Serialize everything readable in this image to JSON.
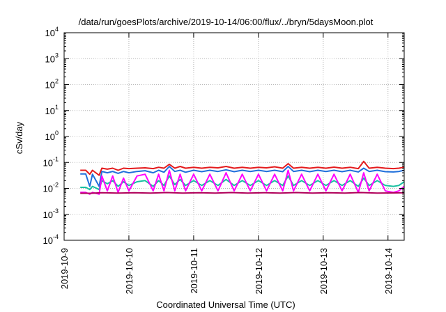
{
  "chart_data": {
    "type": "line",
    "title": "/data/run/goesPlots/archive/2019-10-14/06:00/flux/../bryn/5daysMoon.plot",
    "xlabel": "Coordinated Universal Time (UTC)",
    "ylabel": "cSv/day",
    "yscale": "log",
    "ylim": [
      0.0001,
      10000
    ],
    "xlim": [
      "2019-10-09T00:00",
      "2019-10-14T06:00"
    ],
    "x_ticks": [
      {
        "label": "2019-10-9",
        "date": "2019-10-09"
      },
      {
        "label": "2019-10-10",
        "date": "2019-10-10"
      },
      {
        "label": "2019-10-11",
        "date": "2019-10-11"
      },
      {
        "label": "2019-10-12",
        "date": "2019-10-12"
      },
      {
        "label": "2019-10-13",
        "date": "2019-10-13"
      },
      {
        "label": "2019-10-14",
        "date": "2019-10-14"
      }
    ],
    "y_ticks": [
      {
        "base": "10",
        "exp": "-4",
        "value": 0.0001
      },
      {
        "base": "10",
        "exp": "-3",
        "value": 0.001
      },
      {
        "base": "10",
        "exp": "-2",
        "value": 0.01
      },
      {
        "base": "10",
        "exp": "-1",
        "value": 0.1
      },
      {
        "base": "10",
        "exp": "0",
        "value": 1
      },
      {
        "base": "10",
        "exp": "1",
        "value": 10
      },
      {
        "base": "10",
        "exp": "2",
        "value": 100
      },
      {
        "base": "10",
        "exp": "3",
        "value": 1000
      },
      {
        "base": "10",
        "exp": "4",
        "value": 10000
      }
    ],
    "grid": true,
    "series": [
      {
        "color": "#e41a1c",
        "values": [
          [
            "2019-10-09T06:00",
            0.05
          ],
          [
            "2019-10-09T08:00",
            0.05
          ],
          [
            "2019-10-09T09:30",
            0.035
          ],
          [
            "2019-10-09T10:30",
            0.05
          ],
          [
            "2019-10-09T13:00",
            0.032
          ],
          [
            "2019-10-09T14:00",
            0.06
          ],
          [
            "2019-10-09T16:00",
            0.055
          ],
          [
            "2019-10-09T18:00",
            0.06
          ],
          [
            "2019-10-09T20:00",
            0.05
          ],
          [
            "2019-10-09T22:00",
            0.06
          ],
          [
            "2019-10-10T00:00",
            0.058
          ],
          [
            "2019-10-10T03:00",
            0.06
          ],
          [
            "2019-10-10T06:00",
            0.062
          ],
          [
            "2019-10-10T09:00",
            0.058
          ],
          [
            "2019-10-10T11:00",
            0.065
          ],
          [
            "2019-10-10T13:00",
            0.06
          ],
          [
            "2019-10-10T15:00",
            0.085
          ],
          [
            "2019-10-10T17:00",
            0.06
          ],
          [
            "2019-10-10T19:00",
            0.07
          ],
          [
            "2019-10-10T21:00",
            0.06
          ],
          [
            "2019-10-11T00:00",
            0.065
          ],
          [
            "2019-10-11T03:00",
            0.06
          ],
          [
            "2019-10-11T06:00",
            0.065
          ],
          [
            "2019-10-11T09:00",
            0.062
          ],
          [
            "2019-10-11T12:00",
            0.07
          ],
          [
            "2019-10-11T15:00",
            0.06
          ],
          [
            "2019-10-11T18:00",
            0.065
          ],
          [
            "2019-10-11T21:00",
            0.06
          ],
          [
            "2019-10-12T00:00",
            0.065
          ],
          [
            "2019-10-12T03:00",
            0.062
          ],
          [
            "2019-10-12T06:00",
            0.068
          ],
          [
            "2019-10-12T09:00",
            0.06
          ],
          [
            "2019-10-12T11:00",
            0.09
          ],
          [
            "2019-10-12T13:00",
            0.06
          ],
          [
            "2019-10-12T16:00",
            0.065
          ],
          [
            "2019-10-12T19:00",
            0.06
          ],
          [
            "2019-10-12T22:00",
            0.065
          ],
          [
            "2019-10-13T01:00",
            0.06
          ],
          [
            "2019-10-13T04:00",
            0.066
          ],
          [
            "2019-10-13T07:00",
            0.06
          ],
          [
            "2019-10-13T10:00",
            0.065
          ],
          [
            "2019-10-13T13:00",
            0.058
          ],
          [
            "2019-10-13T15:00",
            0.11
          ],
          [
            "2019-10-13T17:00",
            0.06
          ],
          [
            "2019-10-13T20:00",
            0.065
          ],
          [
            "2019-10-13T23:00",
            0.06
          ],
          [
            "2019-10-14T02:00",
            0.058
          ],
          [
            "2019-10-14T04:00",
            0.06
          ],
          [
            "2019-10-14T06:00",
            0.065
          ]
        ]
      },
      {
        "color": "#1f6fdb",
        "values": [
          [
            "2019-10-09T06:00",
            0.036
          ],
          [
            "2019-10-09T08:00",
            0.036
          ],
          [
            "2019-10-09T09:30",
            0.012
          ],
          [
            "2019-10-09T10:30",
            0.035
          ],
          [
            "2019-10-09T13:00",
            0.012
          ],
          [
            "2019-10-09T14:00",
            0.045
          ],
          [
            "2019-10-09T16:00",
            0.04
          ],
          [
            "2019-10-09T18:00",
            0.045
          ],
          [
            "2019-10-09T20:00",
            0.038
          ],
          [
            "2019-10-09T22:00",
            0.045
          ],
          [
            "2019-10-10T00:00",
            0.04
          ],
          [
            "2019-10-10T03:00",
            0.045
          ],
          [
            "2019-10-10T06:00",
            0.048
          ],
          [
            "2019-10-10T09:00",
            0.04
          ],
          [
            "2019-10-10T11:00",
            0.05
          ],
          [
            "2019-10-10T13:00",
            0.042
          ],
          [
            "2019-10-10T15:00",
            0.07
          ],
          [
            "2019-10-10T17:00",
            0.045
          ],
          [
            "2019-10-10T19:00",
            0.05
          ],
          [
            "2019-10-10T21:00",
            0.042
          ],
          [
            "2019-10-11T00:00",
            0.05
          ],
          [
            "2019-10-11T03:00",
            0.044
          ],
          [
            "2019-10-11T06:00",
            0.05
          ],
          [
            "2019-10-11T09:00",
            0.045
          ],
          [
            "2019-10-11T12:00",
            0.052
          ],
          [
            "2019-10-11T15:00",
            0.044
          ],
          [
            "2019-10-11T18:00",
            0.05
          ],
          [
            "2019-10-11T21:00",
            0.045
          ],
          [
            "2019-10-12T00:00",
            0.05
          ],
          [
            "2019-10-12T03:00",
            0.045
          ],
          [
            "2019-10-12T06:00",
            0.05
          ],
          [
            "2019-10-12T09:00",
            0.044
          ],
          [
            "2019-10-12T11:00",
            0.07
          ],
          [
            "2019-10-12T13:00",
            0.045
          ],
          [
            "2019-10-12T16:00",
            0.05
          ],
          [
            "2019-10-12T19:00",
            0.044
          ],
          [
            "2019-10-12T22:00",
            0.05
          ],
          [
            "2019-10-13T01:00",
            0.045
          ],
          [
            "2019-10-13T04:00",
            0.05
          ],
          [
            "2019-10-13T07:00",
            0.044
          ],
          [
            "2019-10-13T10:00",
            0.05
          ],
          [
            "2019-10-13T13:00",
            0.043
          ],
          [
            "2019-10-13T15:00",
            0.06
          ],
          [
            "2019-10-13T17:00",
            0.045
          ],
          [
            "2019-10-13T20:00",
            0.05
          ],
          [
            "2019-10-13T23:00",
            0.044
          ],
          [
            "2019-10-14T02:00",
            0.043
          ],
          [
            "2019-10-14T04:00",
            0.045
          ],
          [
            "2019-10-14T06:00",
            0.05
          ]
        ]
      },
      {
        "color": "#17c0a0",
        "values": [
          [
            "2019-10-09T06:00",
            0.011
          ],
          [
            "2019-10-09T08:00",
            0.011
          ],
          [
            "2019-10-09T09:30",
            0.009
          ],
          [
            "2019-10-09T10:30",
            0.012
          ],
          [
            "2019-10-09T13:00",
            0.009
          ],
          [
            "2019-10-09T14:00",
            0.02
          ],
          [
            "2019-10-09T16:00",
            0.015
          ],
          [
            "2019-10-09T18:00",
            0.02
          ],
          [
            "2019-10-09T20:00",
            0.012
          ],
          [
            "2019-10-09T22:00",
            0.018
          ],
          [
            "2019-10-10T00:00",
            0.013
          ],
          [
            "2019-10-10T03:00",
            0.018
          ],
          [
            "2019-10-10T06:00",
            0.02
          ],
          [
            "2019-10-10T09:00",
            0.012
          ],
          [
            "2019-10-10T11:00",
            0.02
          ],
          [
            "2019-10-10T13:00",
            0.013
          ],
          [
            "2019-10-10T15:00",
            0.03
          ],
          [
            "2019-10-10T17:00",
            0.014
          ],
          [
            "2019-10-10T19:00",
            0.022
          ],
          [
            "2019-10-10T21:00",
            0.013
          ],
          [
            "2019-10-11T00:00",
            0.02
          ],
          [
            "2019-10-11T03:00",
            0.013
          ],
          [
            "2019-10-11T06:00",
            0.02
          ],
          [
            "2019-10-11T09:00",
            0.013
          ],
          [
            "2019-10-11T12:00",
            0.022
          ],
          [
            "2019-10-11T15:00",
            0.013
          ],
          [
            "2019-10-11T18:00",
            0.02
          ],
          [
            "2019-10-11T21:00",
            0.013
          ],
          [
            "2019-10-12T00:00",
            0.02
          ],
          [
            "2019-10-12T03:00",
            0.013
          ],
          [
            "2019-10-12T06:00",
            0.02
          ],
          [
            "2019-10-12T09:00",
            0.013
          ],
          [
            "2019-10-12T11:00",
            0.03
          ],
          [
            "2019-10-12T13:00",
            0.013
          ],
          [
            "2019-10-12T16:00",
            0.02
          ],
          [
            "2019-10-12T19:00",
            0.013
          ],
          [
            "2019-10-12T22:00",
            0.02
          ],
          [
            "2019-10-13T01:00",
            0.013
          ],
          [
            "2019-10-13T04:00",
            0.02
          ],
          [
            "2019-10-13T07:00",
            0.013
          ],
          [
            "2019-10-13T10:00",
            0.02
          ],
          [
            "2019-10-13T13:00",
            0.012
          ],
          [
            "2019-10-13T15:00",
            0.025
          ],
          [
            "2019-10-13T17:00",
            0.013
          ],
          [
            "2019-10-13T20:00",
            0.02
          ],
          [
            "2019-10-13T23:00",
            0.013
          ],
          [
            "2019-10-14T02:00",
            0.012
          ],
          [
            "2019-10-14T04:00",
            0.013
          ],
          [
            "2019-10-14T06:00",
            0.018
          ]
        ]
      },
      {
        "color": "#ff00ff",
        "values": [
          [
            "2019-10-09T06:00",
            0.007
          ],
          [
            "2019-10-09T08:00",
            0.007
          ],
          [
            "2019-10-09T09:30",
            0.006
          ],
          [
            "2019-10-09T10:30",
            0.007
          ],
          [
            "2019-10-09T13:00",
            0.006
          ],
          [
            "2019-10-09T14:00",
            0.03
          ],
          [
            "2019-10-09T16:00",
            0.008
          ],
          [
            "2019-10-09T18:00",
            0.03
          ],
          [
            "2019-10-09T20:00",
            0.007
          ],
          [
            "2019-10-09T22:00",
            0.025
          ],
          [
            "2019-10-10T00:00",
            0.008
          ],
          [
            "2019-10-10T03:00",
            0.03
          ],
          [
            "2019-10-10T06:00",
            0.035
          ],
          [
            "2019-10-10T09:00",
            0.008
          ],
          [
            "2019-10-10T11:00",
            0.035
          ],
          [
            "2019-10-10T13:00",
            0.008
          ],
          [
            "2019-10-10T15:00",
            0.05
          ],
          [
            "2019-10-10T17:00",
            0.008
          ],
          [
            "2019-10-10T19:00",
            0.035
          ],
          [
            "2019-10-10T21:00",
            0.008
          ],
          [
            "2019-10-11T00:00",
            0.035
          ],
          [
            "2019-10-11T03:00",
            0.008
          ],
          [
            "2019-10-11T06:00",
            0.035
          ],
          [
            "2019-10-11T09:00",
            0.008
          ],
          [
            "2019-10-11T12:00",
            0.04
          ],
          [
            "2019-10-11T15:00",
            0.008
          ],
          [
            "2019-10-11T18:00",
            0.035
          ],
          [
            "2019-10-11T21:00",
            0.008
          ],
          [
            "2019-10-12T00:00",
            0.035
          ],
          [
            "2019-10-12T03:00",
            0.008
          ],
          [
            "2019-10-12T06:00",
            0.035
          ],
          [
            "2019-10-12T09:00",
            0.008
          ],
          [
            "2019-10-12T11:00",
            0.05
          ],
          [
            "2019-10-12T13:00",
            0.008
          ],
          [
            "2019-10-12T16:00",
            0.035
          ],
          [
            "2019-10-12T19:00",
            0.008
          ],
          [
            "2019-10-12T22:00",
            0.035
          ],
          [
            "2019-10-13T01:00",
            0.008
          ],
          [
            "2019-10-13T04:00",
            0.035
          ],
          [
            "2019-10-13T07:00",
            0.008
          ],
          [
            "2019-10-13T10:00",
            0.035
          ],
          [
            "2019-10-13T13:00",
            0.007
          ],
          [
            "2019-10-13T15:00",
            0.04
          ],
          [
            "2019-10-13T17:00",
            0.008
          ],
          [
            "2019-10-13T20:00",
            0.035
          ],
          [
            "2019-10-13T23:00",
            0.008
          ],
          [
            "2019-10-14T02:00",
            0.007
          ],
          [
            "2019-10-14T04:00",
            0.008
          ],
          [
            "2019-10-14T06:00",
            0.012
          ]
        ]
      },
      {
        "color": "#b0005a",
        "values": [
          [
            "2019-10-09T06:00",
            0.0065
          ],
          [
            "2019-10-09T10:00",
            0.0065
          ],
          [
            "2019-10-09T14:00",
            0.0068
          ],
          [
            "2019-10-09T20:00",
            0.0066
          ],
          [
            "2019-10-10T02:00",
            0.0068
          ],
          [
            "2019-10-10T08:00",
            0.0066
          ],
          [
            "2019-10-10T14:00",
            0.0069
          ],
          [
            "2019-10-10T20:00",
            0.0066
          ],
          [
            "2019-10-11T02:00",
            0.0068
          ],
          [
            "2019-10-11T08:00",
            0.0066
          ],
          [
            "2019-10-11T14:00",
            0.0069
          ],
          [
            "2019-10-11T20:00",
            0.0066
          ],
          [
            "2019-10-12T02:00",
            0.0068
          ],
          [
            "2019-10-12T08:00",
            0.0066
          ],
          [
            "2019-10-12T14:00",
            0.0069
          ],
          [
            "2019-10-12T20:00",
            0.0066
          ],
          [
            "2019-10-13T02:00",
            0.0068
          ],
          [
            "2019-10-13T08:00",
            0.0066
          ],
          [
            "2019-10-13T14:00",
            0.0069
          ],
          [
            "2019-10-13T20:00",
            0.0066
          ],
          [
            "2019-10-14T02:00",
            0.0067
          ],
          [
            "2019-10-14T06:00",
            0.0068
          ]
        ]
      }
    ]
  }
}
